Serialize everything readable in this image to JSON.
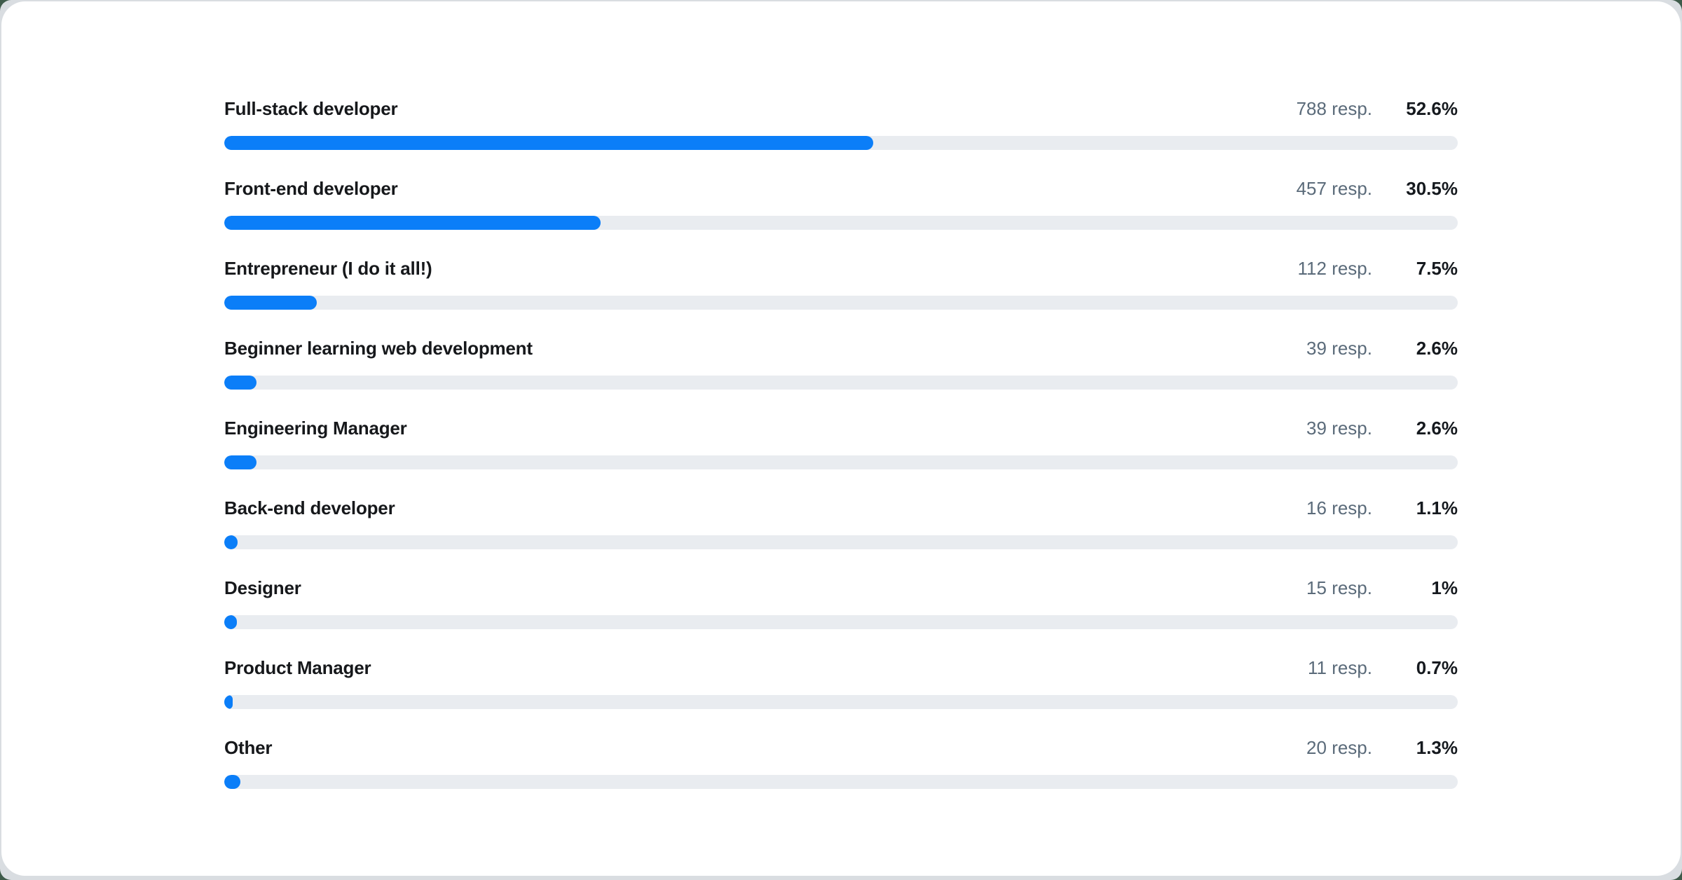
{
  "page": {
    "background_color": "#3e5b4a",
    "card_background": "#ffffff",
    "card_edge_color": "#d9dde1"
  },
  "chart_data": {
    "type": "bar",
    "orientation": "horizontal",
    "title": "",
    "xlabel": "",
    "ylabel": "",
    "xlim": [
      0,
      100
    ],
    "grid": false,
    "legend": "none",
    "bar_color": "#0b7ef8",
    "track_color": "#e9ecf0",
    "categories": [
      "Full-stack developer",
      "Front-end developer",
      "Entrepreneur (I do it all!)",
      "Beginner learning web development",
      "Engineering Manager",
      "Back-end developer",
      "Designer",
      "Product Manager",
      "Other"
    ],
    "values": [
      52.6,
      30.5,
      7.5,
      2.6,
      2.6,
      1.1,
      1.0,
      0.7,
      1.3
    ],
    "responses": [
      788,
      457,
      112,
      39,
      39,
      16,
      15,
      11,
      20
    ],
    "rows": [
      {
        "label": "Full-stack developer",
        "resp_label": "788 resp.",
        "percent_label": "52.6%",
        "percent_value": 52.6
      },
      {
        "label": "Front-end developer",
        "resp_label": "457 resp.",
        "percent_label": "30.5%",
        "percent_value": 30.5
      },
      {
        "label": "Entrepreneur (I do it all!)",
        "resp_label": "112 resp.",
        "percent_label": "7.5%",
        "percent_value": 7.5
      },
      {
        "label": "Beginner learning web development",
        "resp_label": "39 resp.",
        "percent_label": "2.6%",
        "percent_value": 2.6
      },
      {
        "label": "Engineering Manager",
        "resp_label": "39 resp.",
        "percent_label": "2.6%",
        "percent_value": 2.6
      },
      {
        "label": "Back-end developer",
        "resp_label": "16 resp.",
        "percent_label": "1.1%",
        "percent_value": 1.1
      },
      {
        "label": "Designer",
        "resp_label": "15 resp.",
        "percent_label": "1%",
        "percent_value": 1.0
      },
      {
        "label": "Product Manager",
        "resp_label": "11 resp.",
        "percent_label": "0.7%",
        "percent_value": 0.7
      },
      {
        "label": "Other",
        "resp_label": "20 resp.",
        "percent_label": "1.3%",
        "percent_value": 1.3
      }
    ]
  }
}
